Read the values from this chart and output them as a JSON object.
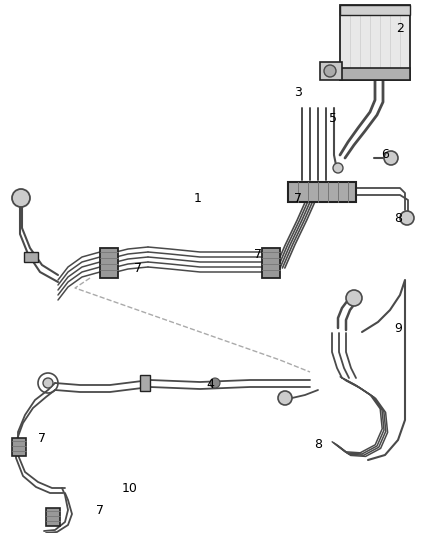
{
  "bg_color": "#ffffff",
  "line_color": "#4a4a4a",
  "dark_color": "#222222",
  "clamp_color": "#888888",
  "label_color": "#000000",
  "fig_width": 4.38,
  "fig_height": 5.33,
  "labels": [
    [
      "1",
      198,
      198
    ],
    [
      "2",
      400,
      28
    ],
    [
      "3",
      298,
      92
    ],
    [
      "4",
      210,
      385
    ],
    [
      "5",
      333,
      118
    ],
    [
      "6",
      385,
      155
    ],
    [
      "7",
      298,
      198
    ],
    [
      "7",
      138,
      268
    ],
    [
      "7",
      258,
      255
    ],
    [
      "7",
      42,
      438
    ],
    [
      "7",
      100,
      510
    ],
    [
      "8",
      398,
      218
    ],
    [
      "8",
      318,
      445
    ],
    [
      "9",
      398,
      328
    ],
    [
      "10",
      130,
      488
    ]
  ]
}
